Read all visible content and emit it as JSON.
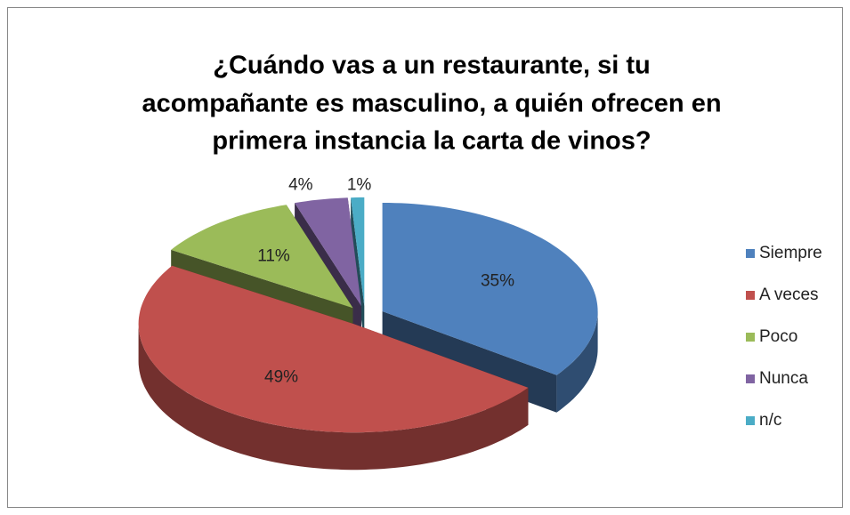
{
  "chart_data": {
    "type": "pie",
    "title": [
      "¿Cuándo vas a un restaurante, si tu",
      "acompañante es masculino, a quién ofrecen en",
      "primera instancia la carta de vinos?"
    ],
    "categories": [
      "Siempre",
      "A veces",
      "Poco",
      "Nunca",
      "n/c"
    ],
    "values": [
      35,
      49,
      11,
      4,
      1
    ],
    "value_labels": [
      "35%",
      "49%",
      "11%",
      "4%",
      "1%"
    ],
    "colors": [
      "#4f81bd",
      "#c0504d",
      "#9bbb59",
      "#8064a2",
      "#4bacc6"
    ],
    "legend": "right"
  }
}
